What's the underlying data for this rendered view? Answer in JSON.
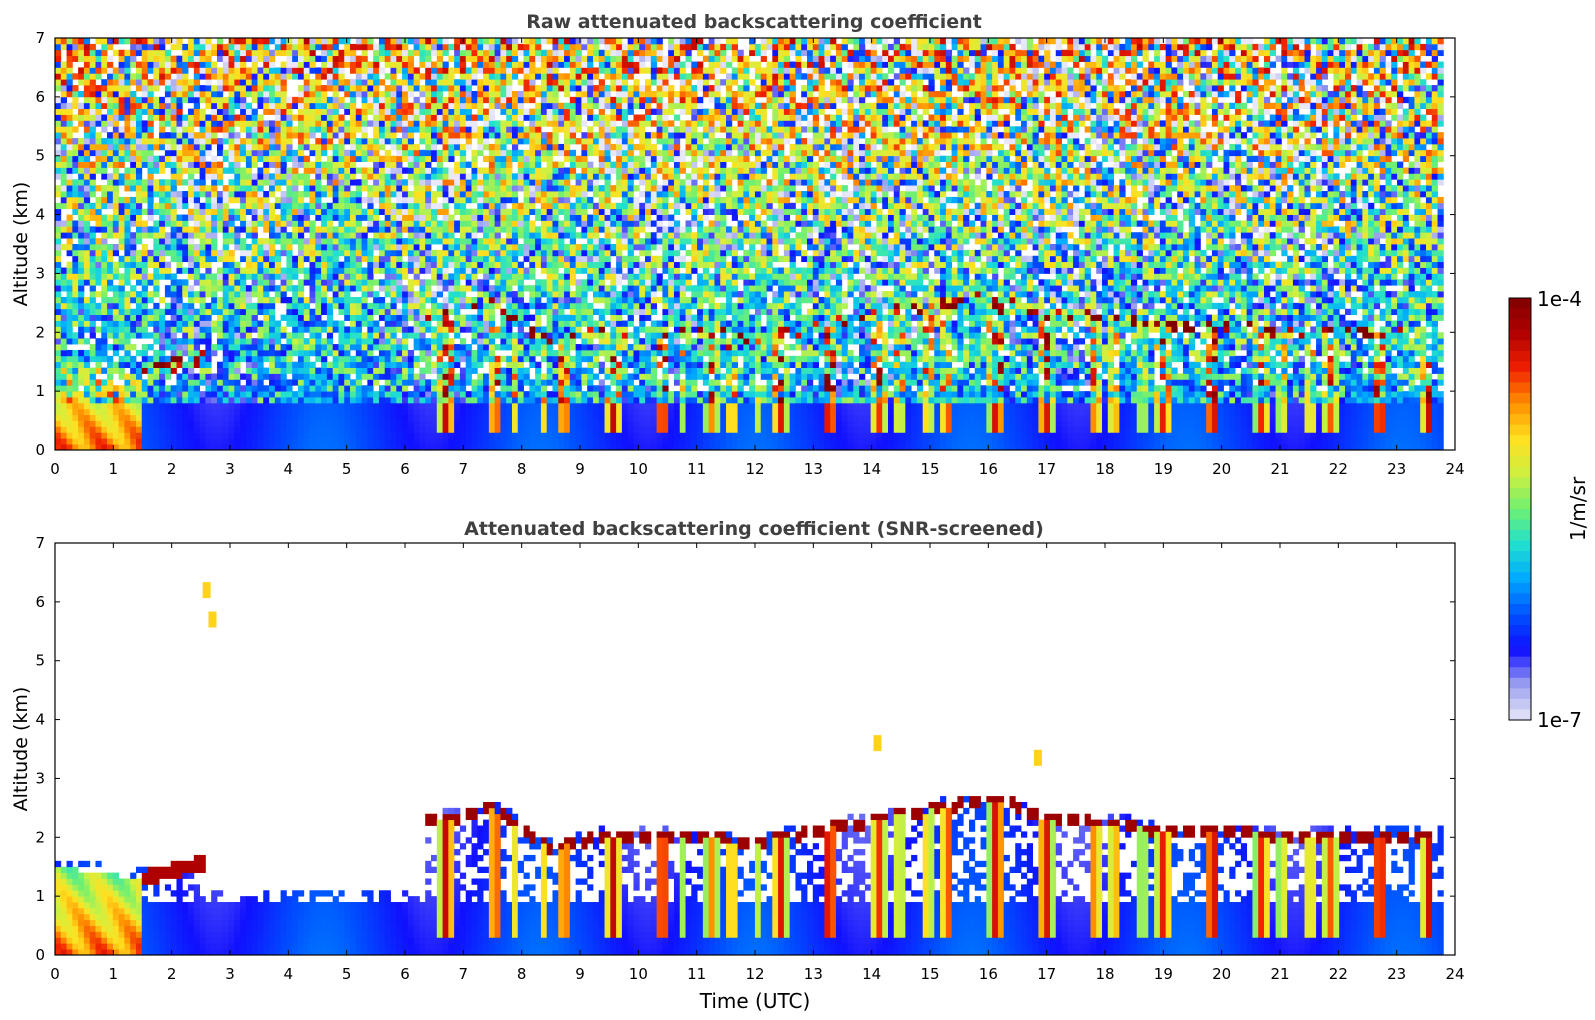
{
  "figure": {
    "colorbar": {
      "max_label": "1e-4",
      "min_label": "1e-7",
      "unit_label": "1/m/sr",
      "scale": "log",
      "colormap": [
        "#e8e8f8",
        "#9ca0ee",
        "#1010ff",
        "#0050ff",
        "#00a8ff",
        "#20e0d0",
        "#70f070",
        "#d0f040",
        "#ffe020",
        "#ff9000",
        "#f02000",
        "#b00000",
        "#800000"
      ]
    }
  },
  "chart_data": [
    {
      "type": "heatmap",
      "title": "Raw attenuated backscattering coefficient",
      "xlabel": "",
      "ylabel": "Altitude (km)",
      "xlim": [
        0,
        24
      ],
      "ylim": [
        0,
        7
      ],
      "xticks": [
        "0",
        "1",
        "2",
        "3",
        "4",
        "5",
        "6",
        "7",
        "8",
        "9",
        "10",
        "11",
        "12",
        "13",
        "14",
        "15",
        "16",
        "17",
        "18",
        "19",
        "20",
        "21",
        "22",
        "23",
        "24"
      ],
      "yticks": [
        "0",
        "1",
        "2",
        "3",
        "4",
        "5",
        "6",
        "7"
      ],
      "grid": false,
      "colorbar_range": [
        1e-07,
        0.0001
      ],
      "cloud_base_km": [
        {
          "t": 6.3,
          "z": 2.25
        },
        {
          "t": 7.0,
          "z": 2.35
        },
        {
          "t": 7.5,
          "z": 2.5
        },
        {
          "t": 8.5,
          "z": 1.8
        },
        {
          "t": 9.5,
          "z": 2.05
        },
        {
          "t": 11.0,
          "z": 2.0
        },
        {
          "t": 12.0,
          "z": 1.9
        },
        {
          "t": 16.0,
          "z": 2.65
        },
        {
          "t": 16.5,
          "z": 2.55
        },
        {
          "t": 17.0,
          "z": 2.3
        },
        {
          "t": 18.5,
          "z": 2.2
        },
        {
          "t": 19.0,
          "z": 2.05
        },
        {
          "t": 20.0,
          "z": 2.1
        },
        {
          "t": 21.3,
          "z": 2.0
        },
        {
          "t": 23.2,
          "z": 2.0
        }
      ],
      "boundary_layer_top_km": [
        {
          "t": 0.0,
          "z": 1.5
        },
        {
          "t": 1.5,
          "z": 1.3
        },
        {
          "t": 2.5,
          "z": 1.55
        }
      ]
    },
    {
      "type": "heatmap",
      "title": "Attenuated backscattering coefficient (SNR-screened)",
      "xlabel": "Time (UTC)",
      "ylabel": "Altitude (km)",
      "xlim": [
        0,
        24
      ],
      "ylim": [
        0,
        7
      ],
      "xticks": [
        "0",
        "1",
        "2",
        "3",
        "4",
        "5",
        "6",
        "7",
        "8",
        "9",
        "10",
        "11",
        "12",
        "13",
        "14",
        "15",
        "16",
        "17",
        "18",
        "19",
        "20",
        "21",
        "22",
        "23",
        "24"
      ],
      "yticks": [
        "0",
        "1",
        "2",
        "3",
        "4",
        "5",
        "6",
        "7"
      ],
      "grid": false,
      "colorbar_range": [
        1e-07,
        0.0001
      ],
      "cloud_base_km": [
        {
          "t": 6.3,
          "z": 2.25
        },
        {
          "t": 7.0,
          "z": 2.35
        },
        {
          "t": 7.5,
          "z": 2.5
        },
        {
          "t": 8.5,
          "z": 1.8
        },
        {
          "t": 9.5,
          "z": 2.05
        },
        {
          "t": 11.0,
          "z": 2.0
        },
        {
          "t": 12.0,
          "z": 1.9
        },
        {
          "t": 16.0,
          "z": 2.65
        },
        {
          "t": 16.5,
          "z": 2.55
        },
        {
          "t": 17.0,
          "z": 2.3
        },
        {
          "t": 18.5,
          "z": 2.2
        },
        {
          "t": 19.0,
          "z": 2.05
        },
        {
          "t": 20.0,
          "z": 2.1
        },
        {
          "t": 21.3,
          "z": 2.0
        },
        {
          "t": 23.2,
          "z": 2.0
        }
      ],
      "boundary_layer_top_km": [
        {
          "t": 0.0,
          "z": 1.5
        },
        {
          "t": 1.5,
          "z": 1.3
        },
        {
          "t": 2.5,
          "z": 1.55
        }
      ],
      "isolated_features_km": [
        {
          "t": 2.6,
          "z": 6.2
        },
        {
          "t": 2.7,
          "z": 5.7
        },
        {
          "t": 14.1,
          "z": 3.6
        },
        {
          "t": 16.85,
          "z": 3.35
        }
      ]
    }
  ]
}
